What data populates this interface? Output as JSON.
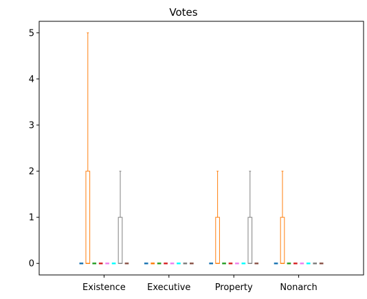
{
  "chart_data": {
    "type": "box",
    "title": "Votes",
    "xlabel": "",
    "ylabel": "",
    "categories": [
      "Existence",
      "Executive",
      "Property",
      "Nonarch"
    ],
    "ylim": [
      -0.25,
      5.25
    ],
    "yticks": [
      0,
      1,
      2,
      3,
      4,
      5
    ],
    "grid": false,
    "legend": "none",
    "series_colors": [
      "#1f77b4",
      "#ff7f0e",
      "#2ca02c",
      "#d62728",
      "#ee82ee",
      "#00ffff",
      "#808080",
      "#8c564b"
    ],
    "groups": [
      {
        "category": "Existence",
        "boxes": [
          {
            "min": 0,
            "q1": 0,
            "median": 0,
            "q3": 0,
            "max": 0
          },
          {
            "min": 0,
            "q1": 0,
            "median": 0,
            "q3": 2,
            "max": 5
          },
          {
            "min": 0,
            "q1": 0,
            "median": 0,
            "q3": 0,
            "max": 0
          },
          {
            "min": 0,
            "q1": 0,
            "median": 0,
            "q3": 0,
            "max": 0
          },
          {
            "min": 0,
            "q1": 0,
            "median": 0,
            "q3": 0,
            "max": 0
          },
          {
            "min": 0,
            "q1": 0,
            "median": 0,
            "q3": 0,
            "max": 0
          },
          {
            "min": 0,
            "q1": 0,
            "median": 0,
            "q3": 1,
            "max": 2
          },
          {
            "min": 0,
            "q1": 0,
            "median": 0,
            "q3": 0,
            "max": 0
          }
        ]
      },
      {
        "category": "Executive",
        "boxes": [
          {
            "min": 0,
            "q1": 0,
            "median": 0,
            "q3": 0,
            "max": 0
          },
          {
            "min": 0,
            "q1": 0,
            "median": 0,
            "q3": 0,
            "max": 0
          },
          {
            "min": 0,
            "q1": 0,
            "median": 0,
            "q3": 0,
            "max": 0
          },
          {
            "min": 0,
            "q1": 0,
            "median": 0,
            "q3": 0,
            "max": 0
          },
          {
            "min": 0,
            "q1": 0,
            "median": 0,
            "q3": 0,
            "max": 0
          },
          {
            "min": 0,
            "q1": 0,
            "median": 0,
            "q3": 0,
            "max": 0
          },
          {
            "min": 0,
            "q1": 0,
            "median": 0,
            "q3": 0,
            "max": 0
          },
          {
            "min": 0,
            "q1": 0,
            "median": 0,
            "q3": 0,
            "max": 0
          }
        ]
      },
      {
        "category": "Property",
        "boxes": [
          {
            "min": 0,
            "q1": 0,
            "median": 0,
            "q3": 0,
            "max": 0
          },
          {
            "min": 0,
            "q1": 0,
            "median": 0,
            "q3": 1,
            "max": 2
          },
          {
            "min": 0,
            "q1": 0,
            "median": 0,
            "q3": 0,
            "max": 0
          },
          {
            "min": 0,
            "q1": 0,
            "median": 0,
            "q3": 0,
            "max": 0
          },
          {
            "min": 0,
            "q1": 0,
            "median": 0,
            "q3": 0,
            "max": 0
          },
          {
            "min": 0,
            "q1": 0,
            "median": 0,
            "q3": 0,
            "max": 0
          },
          {
            "min": 0,
            "q1": 0,
            "median": 0,
            "q3": 1,
            "max": 2
          },
          {
            "min": 0,
            "q1": 0,
            "median": 0,
            "q3": 0,
            "max": 0
          }
        ]
      },
      {
        "category": "Nonarch",
        "boxes": [
          {
            "min": 0,
            "q1": 0,
            "median": 0,
            "q3": 0,
            "max": 0
          },
          {
            "min": 0,
            "q1": 0,
            "median": 0,
            "q3": 1,
            "max": 2
          },
          {
            "min": 0,
            "q1": 0,
            "median": 0,
            "q3": 0,
            "max": 0
          },
          {
            "min": 0,
            "q1": 0,
            "median": 0,
            "q3": 0,
            "max": 0
          },
          {
            "min": 0,
            "q1": 0,
            "median": 0,
            "q3": 0,
            "max": 0
          },
          {
            "min": 0,
            "q1": 0,
            "median": 0,
            "q3": 0,
            "max": 0
          },
          {
            "min": 0,
            "q1": 0,
            "median": 0,
            "q3": 0,
            "max": 0
          },
          {
            "min": 0,
            "q1": 0,
            "median": 0,
            "q3": 0,
            "max": 0
          }
        ]
      }
    ]
  }
}
